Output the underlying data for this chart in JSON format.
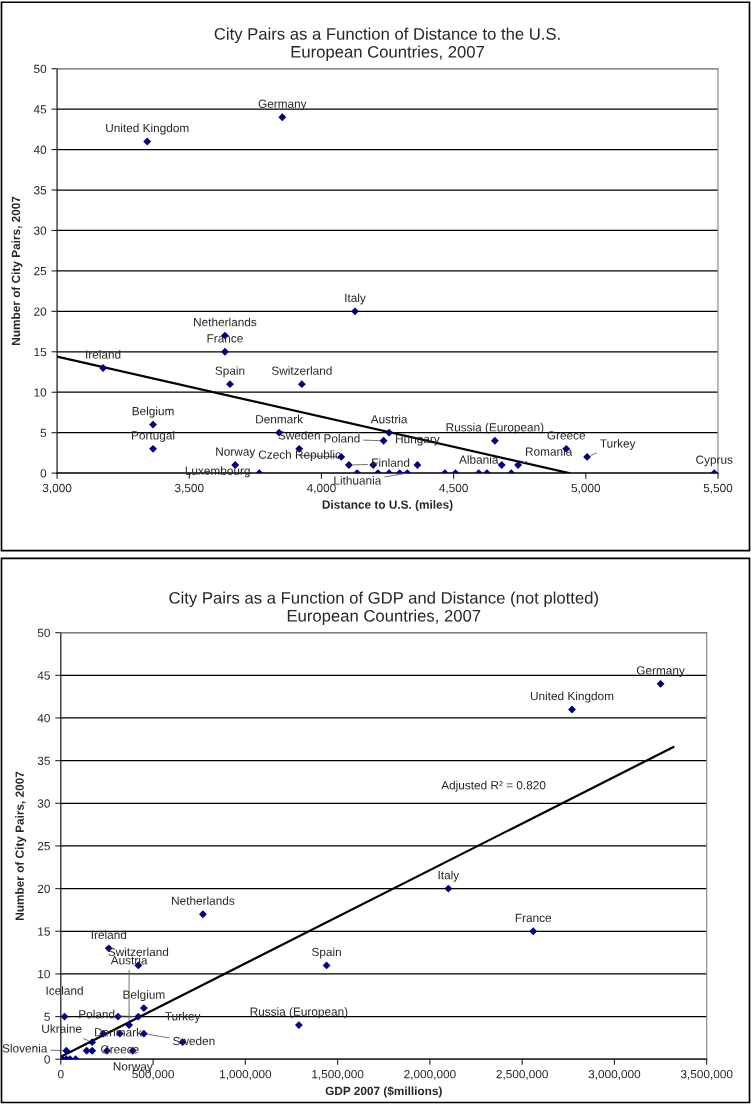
{
  "chart_data": [
    {
      "type": "scatter",
      "title": "City Pairs as a Function of Distance to the U.S.\nEuropean Countries, 2007",
      "xlabel": "Distance to U.S. (miles)",
      "ylabel": "Number of City Pairs, 2007",
      "xlim": [
        3000,
        5500
      ],
      "ylim": [
        0,
        50
      ],
      "xticks": [
        {
          "value": 3000,
          "label": "3,000"
        },
        {
          "value": 3500,
          "label": "3,500"
        },
        {
          "value": 4000,
          "label": "4,000"
        },
        {
          "value": 4500,
          "label": "4,500"
        },
        {
          "value": 5000,
          "label": "5,000"
        },
        {
          "value": 5500,
          "label": "5,500"
        }
      ],
      "yticks": [
        0,
        5,
        10,
        15,
        20,
        25,
        30,
        35,
        40,
        45,
        50
      ],
      "grid": "y",
      "legend": false,
      "series": [
        {
          "marker": "diamond",
          "color": "#000080",
          "x": [
            3341,
            3852,
            4127,
            3635,
            3635,
            3174,
            3654,
            3926,
            3363,
            3363,
            3840,
            4256,
            4235,
            3916,
            4075,
            4104,
            3674,
            3765,
            4363,
            4325,
            4595,
            4656,
            4744,
            4926,
            5005,
            5486,
            4196,
            4135,
            4214,
            4256,
            4296,
            4467,
            4507,
            4626,
            4682,
            4718
          ],
          "values": [
            41,
            44,
            20,
            17,
            15,
            13,
            11,
            11,
            6,
            3,
            5,
            5,
            4,
            3,
            2,
            1,
            1,
            0,
            1,
            0,
            0,
            4,
            1,
            3,
            2,
            0,
            1,
            0,
            0,
            0,
            0,
            0,
            0,
            0,
            1,
            0
          ]
        },
        {
          "type": "line",
          "color": "#000000",
          "x": [
            3000,
            4937
          ],
          "values": [
            14.4,
            0
          ]
        }
      ],
      "annotations": [
        {
          "text": "United Kingdom",
          "x": 3341,
          "y": 41
        },
        {
          "text": "Germany",
          "x": 3852,
          "y": 44
        },
        {
          "text": "Italy",
          "x": 4127,
          "y": 20
        },
        {
          "text": "Netherlands",
          "x": 3635,
          "y": 17
        },
        {
          "text": "France",
          "x": 3635,
          "y": 15
        },
        {
          "text": "Ireland",
          "x": 3174,
          "y": 13
        },
        {
          "text": "Spain",
          "x": 3654,
          "y": 11
        },
        {
          "text": "Switzerland",
          "x": 3926,
          "y": 11
        },
        {
          "text": "Belgium",
          "x": 3363,
          "y": 6
        },
        {
          "text": "Portugal",
          "x": 3363,
          "y": 3
        },
        {
          "text": "Denmark",
          "x": 3840,
          "y": 5
        },
        {
          "text": "Austria",
          "x": 4256,
          "y": 5
        },
        {
          "text": "Poland",
          "x": 4235,
          "y": 4
        },
        {
          "text": "Sweden",
          "x": 3916,
          "y": 3
        },
        {
          "text": "Czech Republic",
          "x": 4075,
          "y": 2
        },
        {
          "text": "Finland",
          "x": 4104,
          "y": 1
        },
        {
          "text": "Norway",
          "x": 3674,
          "y": 1
        },
        {
          "text": "Luxembourg",
          "x": 3765,
          "y": 0
        },
        {
          "text": "Hungary",
          "x": 4363,
          "y": 1
        },
        {
          "text": "Lithuania",
          "x": 4325,
          "y": 0
        },
        {
          "text": "Albania",
          "x": 4595,
          "y": 0
        },
        {
          "text": "Russia (European)",
          "x": 4656,
          "y": 4
        },
        {
          "text": "Romania",
          "x": 4744,
          "y": 1
        },
        {
          "text": "Greece",
          "x": 4926,
          "y": 3
        },
        {
          "text": "Turkey",
          "x": 5005,
          "y": 2
        },
        {
          "text": "Cyprus",
          "x": 5486,
          "y": 0
        }
      ]
    },
    {
      "type": "scatter",
      "title": "City Pairs as a Function of GDP and Distance (not plotted)\nEuropean Countries, 2007",
      "xlabel": "GDP 2007 ($millions)",
      "ylabel": "Number of City Pairs, 2007",
      "xlim": [
        0,
        3500000
      ],
      "ylim": [
        0,
        50
      ],
      "xticks": [
        0,
        {
          "value": 500000,
          "label": "500,000"
        },
        {
          "value": 1000000,
          "label": "1,000,000"
        },
        {
          "value": 1500000,
          "label": "1,500,000"
        },
        {
          "value": 2000000,
          "label": "2,000,000"
        },
        {
          "value": 2500000,
          "label": "2,500,000"
        },
        {
          "value": 3000000,
          "label": "3,000,000"
        },
        {
          "value": 3500000,
          "label": "3,500,000"
        }
      ],
      "yticks": [
        0,
        5,
        10,
        15,
        20,
        25,
        30,
        35,
        40,
        45,
        50
      ],
      "grid": "y",
      "legend": false,
      "series": [
        {
          "marker": "diamond",
          "color": "#000080",
          "x": [
            3250000,
            2770000,
            2100000,
            2560000,
            1440000,
            1290000,
            770000,
            260000,
            420000,
            450000,
            420000,
            310000,
            370000,
            320000,
            450000,
            390000,
            660000,
            170000,
            20000,
            30000,
            230000,
            140000,
            170000,
            250000,
            10000,
            30000,
            50000,
            80000
          ],
          "values": [
            44,
            41,
            20,
            15,
            11,
            4,
            17,
            13,
            11,
            6,
            5,
            5,
            4,
            3,
            3,
            1,
            2,
            2,
            5,
            1,
            3,
            1,
            1,
            1,
            0,
            0,
            0,
            0
          ]
        },
        {
          "type": "line",
          "color": "#000000",
          "x": [
            0,
            3320000
          ],
          "values": [
            0.3,
            36.6
          ]
        }
      ],
      "annotations": [
        {
          "text": "Germany",
          "x": 3250000,
          "y": 44
        },
        {
          "text": "United Kingdom",
          "x": 2770000,
          "y": 41
        },
        {
          "text": "Italy",
          "x": 2100000,
          "y": 20
        },
        {
          "text": "France",
          "x": 2560000,
          "y": 15
        },
        {
          "text": "Spain",
          "x": 1440000,
          "y": 11
        },
        {
          "text": "Russia (European)",
          "x": 1290000,
          "y": 4
        },
        {
          "text": "Netherlands",
          "x": 770000,
          "y": 17
        },
        {
          "text": "Ireland",
          "x": 260000,
          "y": 13
        },
        {
          "text": "Switzerland",
          "x": 420000,
          "y": 11
        },
        {
          "text": "Belgium",
          "x": 450000,
          "y": 6
        },
        {
          "text": "Poland",
          "x": 420000,
          "y": 5
        },
        {
          "text": "Denmark",
          "x": 310000,
          "y": 5
        },
        {
          "text": "Austria",
          "x": 370000,
          "y": 4
        },
        {
          "text": "Greece",
          "x": 320000,
          "y": 3
        },
        {
          "text": "Sweden",
          "x": 450000,
          "y": 3
        },
        {
          "text": "Norway",
          "x": 390000,
          "y": 1
        },
        {
          "text": "Turkey",
          "x": 660000,
          "y": 2
        },
        {
          "text": "Ukraine",
          "x": 170000,
          "y": 2
        },
        {
          "text": "Iceland",
          "x": 20000,
          "y": 5
        },
        {
          "text": "Slovenia",
          "x": 30000,
          "y": 1
        },
        "Adjusted R² = 0.820"
      ]
    }
  ]
}
